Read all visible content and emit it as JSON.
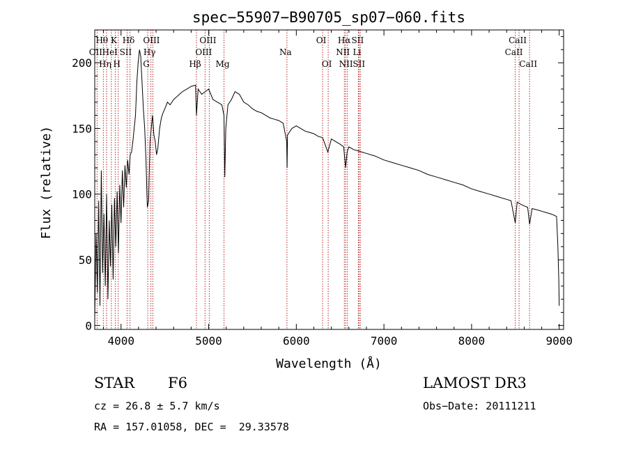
{
  "chart_data": {
    "type": "line",
    "title": "spec−55907−B90705_sp07−060.fits",
    "xlabel": "Wavelength (Å)",
    "ylabel": "Flux (relative)",
    "xlim": [
      3700,
      9050
    ],
    "ylim": [
      -3,
      225
    ],
    "x_ticks": [
      4000,
      5000,
      6000,
      7000,
      8000,
      9000
    ],
    "y_ticks": [
      0,
      50,
      100,
      150,
      200
    ],
    "series": [
      {
        "name": "flux",
        "x": [
          3700,
          3715,
          3730,
          3745,
          3760,
          3775,
          3790,
          3805,
          3820,
          3835,
          3850,
          3865,
          3880,
          3895,
          3910,
          3925,
          3940,
          3955,
          3970,
          3985,
          4000,
          4015,
          4030,
          4045,
          4060,
          4075,
          4090,
          4105,
          4120,
          4135,
          4150,
          4165,
          4180,
          4195,
          4210,
          4225,
          4240,
          4255,
          4270,
          4285,
          4300,
          4315,
          4330,
          4345,
          4360,
          4375,
          4390,
          4405,
          4420,
          4440,
          4460,
          4480,
          4500,
          4530,
          4560,
          4600,
          4650,
          4700,
          4750,
          4800,
          4850,
          4861,
          4880,
          4920,
          4960,
          5000,
          5050,
          5100,
          5150,
          5175,
          5184,
          5195,
          5220,
          5260,
          5300,
          5350,
          5400,
          5450,
          5500,
          5550,
          5600,
          5650,
          5700,
          5750,
          5800,
          5850,
          5890,
          5895,
          5900,
          5950,
          6000,
          6050,
          6100,
          6150,
          6200,
          6250,
          6300,
          6360,
          6400,
          6450,
          6500,
          6540,
          6563,
          6580,
          6600,
          6650,
          6700,
          6750,
          6800,
          6900,
          7000,
          7100,
          7200,
          7300,
          7400,
          7500,
          7600,
          7700,
          7800,
          7900,
          8000,
          8100,
          8200,
          8300,
          8400,
          8450,
          8498,
          8520,
          8542,
          8570,
          8600,
          8640,
          8662,
          8690,
          8750,
          8800,
          8850,
          8900,
          8940,
          8970,
          8985,
          8995,
          9000
        ],
        "y": [
          5,
          70,
          25,
          95,
          15,
          118,
          40,
          85,
          30,
          100,
          20,
          80,
          45,
          92,
          35,
          97,
          60,
          102,
          55,
          107,
          78,
          118,
          90,
          122,
          105,
          126,
          115,
          130,
          132,
          140,
          150,
          160,
          185,
          200,
          210,
          205,
          185,
          165,
          150,
          125,
          90,
          95,
          140,
          150,
          160,
          145,
          140,
          130,
          135,
          150,
          158,
          162,
          165,
          170,
          168,
          172,
          175,
          178,
          180,
          182,
          183,
          160,
          180,
          176,
          178,
          180,
          172,
          170,
          168,
          160,
          113,
          150,
          168,
          172,
          178,
          176,
          170,
          168,
          165,
          163,
          162,
          160,
          158,
          157,
          156,
          154,
          140,
          120,
          145,
          150,
          152,
          150,
          148,
          147,
          146,
          144,
          143,
          132,
          142,
          140,
          138,
          136,
          120,
          132,
          136,
          134,
          133,
          132,
          131,
          129,
          126,
          124,
          122,
          120,
          118,
          115,
          113,
          111,
          109,
          107,
          104,
          102,
          100,
          98,
          96,
          95,
          78,
          94,
          93,
          92,
          91,
          90,
          77,
          89,
          88,
          87,
          86,
          85,
          84,
          83,
          60,
          35,
          15
        ]
      }
    ],
    "line_annotations": [
      {
        "label": "Hθ",
        "wave": 3798,
        "row": 1
      },
      {
        "label": "OII",
        "wave": 3727,
        "row": 2
      },
      {
        "label": "Hη",
        "wave": 3835,
        "row": 3
      },
      {
        "label": "HeI",
        "wave": 3889,
        "row": 2
      },
      {
        "label": "K",
        "wave": 3934,
        "row": 1
      },
      {
        "label": "H",
        "wave": 3968,
        "row": 3
      },
      {
        "label": "SII",
        "wave": 4069,
        "row": 2
      },
      {
        "label": "Hδ",
        "wave": 4102,
        "row": 1
      },
      {
        "label": "G",
        "wave": 4305,
        "row": 3
      },
      {
        "label": "OIII",
        "wave": 4363,
        "row": 1
      },
      {
        "label": "Hγ",
        "wave": 4341,
        "row": 2
      },
      {
        "label": "Hβ",
        "wave": 4861,
        "row": 3
      },
      {
        "label": "OIII",
        "wave": 5007,
        "row": 1
      },
      {
        "label": "OIII",
        "wave": 4959,
        "row": 2
      },
      {
        "label": "Mg",
        "wave": 5175,
        "row": 3
      },
      {
        "label": "Na",
        "wave": 5893,
        "row": 2
      },
      {
        "label": "OI",
        "wave": 6300,
        "row": 1
      },
      {
        "label": "OI",
        "wave": 6364,
        "row": 3
      },
      {
        "label": "Hα",
        "wave": 6563,
        "row": 1
      },
      {
        "label": "NII",
        "wave": 6548,
        "row": 2
      },
      {
        "label": "NII",
        "wave": 6583,
        "row": 3
      },
      {
        "label": "SII",
        "wave": 6716,
        "row": 1
      },
      {
        "label": "Li",
        "wave": 6708,
        "row": 2
      },
      {
        "label": "SII",
        "wave": 6731,
        "row": 3
      },
      {
        "label": "CaII",
        "wave": 8542,
        "row": 1
      },
      {
        "label": "CaII",
        "wave": 8498,
        "row": 2
      },
      {
        "label": "CaII",
        "wave": 8662,
        "row": 3
      }
    ]
  },
  "info": {
    "class": "STAR",
    "subclass": "F6",
    "survey": "LAMOST DR3",
    "cz": "cz = 26.8 ± 5.7 km/s",
    "obs_date": "Obs−Date: 20111211",
    "radec": "RA = 157.01058, DEC =  29.33578"
  },
  "colors": {
    "line_marker": "#b22222",
    "spectrum": "#000000"
  }
}
